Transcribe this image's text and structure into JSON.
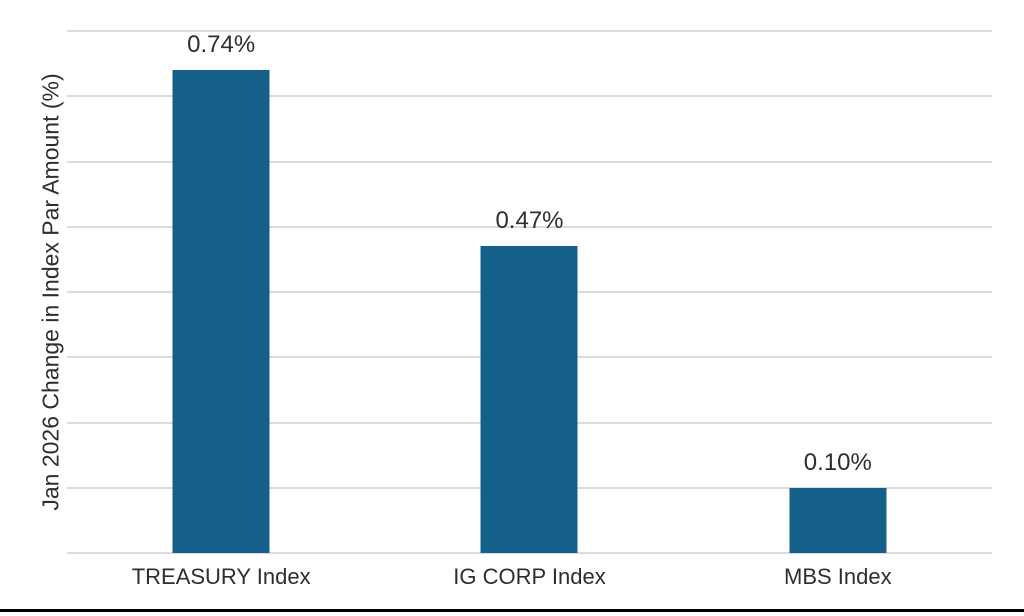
{
  "chart_data": {
    "type": "bar",
    "categories": [
      "TREASURY Index",
      "IG CORP Index",
      "MBS Index"
    ],
    "values": [
      0.74,
      0.47,
      0.1
    ],
    "value_labels": [
      "0.74%",
      "0.47%",
      "0.10%"
    ],
    "title": "",
    "xlabel": "",
    "ylabel": "Jan 2026 Change in Index Par Amount (%)",
    "ylim": [
      0,
      0.8
    ],
    "gridline_step": 0.1,
    "grid": true,
    "y_tick_labels_visible": false,
    "legend_position": "none",
    "bar_color": "#15608A",
    "gridline_color": "#DCDCDC",
    "text_color": "#2E2E2E",
    "bottom_rule_color": "#000000"
  }
}
